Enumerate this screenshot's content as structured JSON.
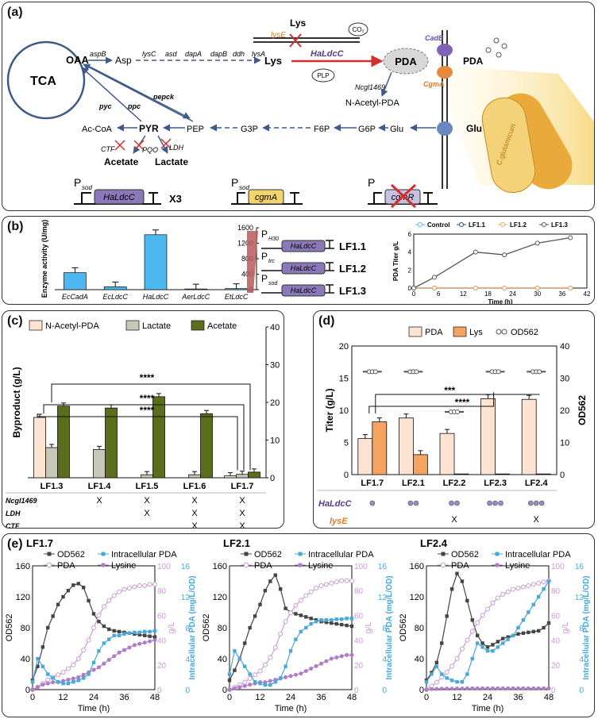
{
  "panel_a": {
    "label": "(a)",
    "tca": "TCA",
    "oaa": "OAA",
    "aspB": "aspB",
    "asp": "Asp",
    "lys_genes": [
      "lysC",
      "asd",
      "dapA",
      "dapB",
      "ddh",
      "lysA"
    ],
    "lys": "Lys",
    "lys_top": "Lys",
    "lysE": "lysE",
    "co2": "CO₂",
    "haldcc": "HaLdcC",
    "plp": "PLP",
    "pda": "PDA",
    "pda_out": "PDA",
    "cadB": "CadB",
    "cgmA": "CgmA",
    "ncgl": "Ncgl1469",
    "nacetyl": "N-Acetyl-PDA",
    "pyc": "pyc",
    "ppc": "ppc",
    "pepck": "pepck",
    "acoa": "Ac-CoA",
    "pyr": "PYR",
    "pep": "PEP",
    "g3p": "G3P",
    "f6p": "F6P",
    "g6p": "G6P",
    "glu": "Glu",
    "glu_out": "Glu",
    "ctf": "CTF",
    "pqo": "PQO",
    "ldh": "LDH",
    "acetate": "Acetate",
    "lactate": "Lactate",
    "cassette1_p": "P",
    "cassette1_sub": "sod",
    "cassette1_gene": "HaLdcC",
    "cassette1_copies": "X3",
    "cassette2_p": "P",
    "cassette2_sub": "sod",
    "cassette2_gene": "cgmA",
    "cassette3_p": "P",
    "cassette3_gene": "cgmR",
    "cell_text": "C.glutamicum"
  },
  "panel_b": {
    "label": "(b)",
    "colors": {
      "bar": "#4db8f0",
      "control": "#4db8f0",
      "lf11": "#1f4e9c",
      "lf12": "#f4a460",
      "lf13": "#555555"
    },
    "constructs": [
      {
        "p": "P",
        "sub": "H30",
        "gene": "HaLdcC",
        "name": "LF1.1"
      },
      {
        "p": "P",
        "sub": "trc",
        "gene": "HaLdcC",
        "name": "LF1.2"
      },
      {
        "p": "P",
        "sub": "sod",
        "gene": "HaLdcC",
        "name": "LF1.3"
      }
    ]
  },
  "panel_c": {
    "label": "(c)",
    "rows": [
      {
        "gene": "Ncgl1469",
        "marks": [
          "",
          "X",
          "X",
          "X",
          "X"
        ]
      },
      {
        "gene": "LDH",
        "marks": [
          "",
          "",
          "X",
          "X",
          "X"
        ]
      },
      {
        "gene": "CTF",
        "marks": [
          "",
          "",
          "",
          "X",
          "X"
        ]
      },
      {
        "gene": "PQO",
        "marks": [
          "",
          "",
          "",
          "",
          "X"
        ]
      }
    ],
    "sig": "****",
    "colors": {
      "nacetyl": "#fde3d2",
      "lactate": "#c8c8b8",
      "acetate": "#5a6e1c"
    }
  },
  "panel_d": {
    "label": "(d)",
    "sig1": "***",
    "sig2": "****",
    "row1_label": "HaLdcC",
    "row1_dots": [
      1,
      2,
      2,
      3,
      3
    ],
    "row2_label": "lysE",
    "row2_marks": [
      "",
      "",
      "X",
      "",
      "X"
    ],
    "colors": {
      "pda": "#fde3d2",
      "lys": "#f4a460",
      "od": "#888888"
    }
  },
  "panel_e": {
    "label": "(e)",
    "colors": {
      "od": "#444444",
      "pda": "#c89cd0",
      "lys": "#b07cc8",
      "intra": "#4aa8d8"
    }
  },
  "chart_data": [
    {
      "type": "bar",
      "categories": [
        "EcCadA",
        "EcLdcC",
        "HaLdcC",
        "AerLdcC",
        "EtLdcC"
      ],
      "values": [
        440,
        75,
        1420,
        18,
        28
      ],
      "xlabel": "",
      "ylabel": "Enzyme activity (U/mg)",
      "ylim": [
        0,
        1600
      ],
      "yticks": [
        "0",
        "400",
        "800",
        "1200",
        "1600"
      ]
    },
    {
      "type": "line",
      "x": [
        0,
        5,
        15,
        22,
        30,
        38
      ],
      "series": [
        {
          "name": "Control",
          "values": [
            0,
            0,
            0,
            0,
            0,
            0
          ]
        },
        {
          "name": "LF1.1",
          "values": [
            0,
            0,
            0,
            0,
            0,
            0
          ]
        },
        {
          "name": "LF1.2",
          "values": [
            0,
            0,
            0,
            0,
            0,
            0
          ]
        },
        {
          "name": "LF1.3",
          "values": [
            0,
            1.2,
            4.0,
            3.7,
            5.0,
            5.6
          ]
        }
      ],
      "xlabel": "Time (h)",
      "ylabel": "PDA Titer g/L",
      "xlim": [
        0,
        42
      ],
      "ylim": [
        0,
        6
      ],
      "xticks": [
        "0",
        "6",
        "12",
        "18",
        "24",
        "30",
        "36",
        "42"
      ],
      "yticks": [
        "0",
        "2",
        "4",
        "6"
      ]
    },
    {
      "type": "bar",
      "categories": [
        "LF1.3",
        "LF1.4",
        "LF1.5",
        "LF1.6",
        "LF1.7"
      ],
      "series": [
        {
          "name": "N-Acetyl-PDA",
          "values": [
            16,
            0,
            0,
            0,
            0.5
          ]
        },
        {
          "name": "Lactate",
          "values": [
            8,
            7.5,
            0.8,
            0.8,
            0.9
          ]
        },
        {
          "name": "Acetate",
          "values": [
            19,
            18.5,
            21.5,
            17,
            1.5
          ]
        }
      ],
      "xlabel": "",
      "ylabel": "Byproduct (g/L)",
      "ylim": [
        0,
        40
      ],
      "yticks": [
        "0",
        "10",
        "20",
        "30",
        "40"
      ]
    },
    {
      "type": "bar",
      "categories": [
        "LF1.7",
        "LF2.1",
        "LF2.2",
        "LF2.3",
        "LF2.4"
      ],
      "series": [
        {
          "name": "PDA",
          "values": [
            5.6,
            8.8,
            6.4,
            11.8,
            11.7
          ]
        },
        {
          "name": "Lys",
          "values": [
            8.2,
            3.1,
            0.1,
            0.1,
            0.1
          ]
        },
        {
          "name": "OD562",
          "values": [
            32,
            32,
            19.5,
            32,
            32
          ]
        }
      ],
      "ylabel": "Titer (g/L)",
      "y2label": "OD562",
      "ylim": [
        0,
        20
      ],
      "y2lim": [
        0,
        40
      ],
      "yticks": [
        "0",
        "5",
        "10",
        "15",
        "20"
      ],
      "y2ticks": [
        "0",
        "10",
        "20",
        "30",
        "40"
      ]
    },
    {
      "type": "line",
      "title": "LF1.7",
      "x": [
        0,
        2,
        4,
        6,
        8,
        10,
        12,
        14,
        16,
        18,
        20,
        22,
        24,
        26,
        28,
        30,
        32,
        34,
        36,
        38,
        40,
        42,
        44,
        46,
        48
      ],
      "series": [
        {
          "name": "OD562",
          "values": [
            12,
            30,
            55,
            80,
            95,
            110,
            120,
            128,
            135,
            137,
            132,
            115,
            98,
            88,
            82,
            78,
            76,
            75,
            74,
            73,
            72,
            71,
            70,
            69,
            68
          ]
        },
        {
          "name": "PDA",
          "values": [
            0,
            2,
            5,
            8,
            10,
            12,
            14,
            17,
            20,
            25,
            32,
            40,
            50,
            60,
            67,
            72,
            76,
            79,
            81,
            82,
            83,
            84,
            84,
            85,
            85
          ]
        },
        {
          "name": "Lysine",
          "values": [
            0,
            2,
            4,
            5,
            6,
            6,
            7,
            8,
            9,
            10,
            12,
            14,
            16,
            18,
            21,
            24,
            27,
            30,
            32,
            34,
            36,
            37,
            38,
            39,
            40
          ]
        },
        {
          "name": "Intracellular PDA",
          "values": [
            1,
            4,
            3,
            2,
            1.5,
            1,
            0.8,
            0.8,
            1,
            1.2,
            1.5,
            2,
            3.5,
            5,
            6,
            6.5,
            7,
            7,
            7.2,
            7.3,
            7.4,
            7.4,
            7.5,
            7.5,
            7.6
          ]
        }
      ],
      "xlabel": "Time (h)",
      "ylabel": "OD562",
      "y2label": "g/L",
      "y3label": "Intracellular PDA (mg/L/OD)",
      "xlim": [
        0,
        48
      ],
      "ylim": [
        0,
        160
      ],
      "y2lim": [
        0,
        100
      ],
      "y3lim": [
        0,
        16
      ],
      "xticks": [
        "0",
        "12",
        "24",
        "36",
        "48"
      ],
      "yticks": [
        "0",
        "40",
        "80",
        "120",
        "160"
      ],
      "y2ticks": [
        "0",
        "20",
        "40",
        "60",
        "80",
        "100"
      ],
      "y3ticks": [
        "0",
        "4",
        "8",
        "12",
        "16"
      ]
    },
    {
      "type": "line",
      "title": "LF2.1",
      "x": [
        0,
        2,
        4,
        6,
        8,
        10,
        12,
        14,
        16,
        18,
        20,
        22,
        24,
        26,
        28,
        30,
        32,
        34,
        36,
        38,
        40,
        42,
        44,
        46,
        48
      ],
      "series": [
        {
          "name": "OD562",
          "values": [
            12,
            25,
            40,
            60,
            80,
            95,
            110,
            128,
            140,
            148,
            130,
            105,
            100,
            98,
            96,
            94,
            92,
            90,
            88,
            87,
            86,
            85,
            84,
            83,
            82
          ]
        },
        {
          "name": "PDA",
          "values": [
            0,
            2,
            4,
            6,
            9,
            12,
            15,
            20,
            26,
            34,
            45,
            55,
            62,
            68,
            72,
            76,
            79,
            82,
            84,
            85,
            86,
            87,
            88,
            88,
            88
          ]
        },
        {
          "name": "Lysine",
          "values": [
            0,
            1,
            2,
            3,
            4,
            5,
            6,
            6,
            7,
            8,
            9,
            10,
            11,
            12,
            13,
            15,
            17,
            19,
            21,
            23,
            25,
            26,
            27,
            28,
            28
          ]
        },
        {
          "name": "Intracellular PDA",
          "values": [
            2,
            5,
            4,
            3,
            2,
            1,
            0.8,
            0.6,
            0.6,
            1,
            1.5,
            3,
            5,
            6.5,
            7.5,
            8,
            8.5,
            8.8,
            9,
            9,
            9,
            9.1,
            9.1,
            9.2,
            9.2
          ]
        }
      ],
      "xlabel": "Time (h)",
      "ylabel": "OD562",
      "y2label": "g/L",
      "y3label": "Intracellular PDA (mg/L/OD)",
      "xlim": [
        0,
        48
      ],
      "ylim": [
        0,
        160
      ],
      "y2lim": [
        0,
        100
      ],
      "y3lim": [
        0,
        16
      ],
      "xticks": [
        "0",
        "12",
        "24",
        "36",
        "48"
      ],
      "yticks": [
        "0",
        "40",
        "80",
        "120",
        "160"
      ],
      "y2ticks": [
        "0",
        "20",
        "40",
        "60",
        "80",
        "100"
      ],
      "y3ticks": [
        "0",
        "4",
        "8",
        "12",
        "16"
      ]
    },
    {
      "type": "line",
      "title": "LF2.4",
      "x": [
        0,
        2,
        4,
        6,
        8,
        10,
        12,
        14,
        16,
        18,
        20,
        22,
        24,
        26,
        28,
        30,
        32,
        34,
        36,
        38,
        40,
        42,
        44,
        46,
        48
      ],
      "series": [
        {
          "name": "OD562",
          "values": [
            12,
            22,
            35,
            60,
            95,
            130,
            150,
            140,
            115,
            90,
            70,
            60,
            55,
            58,
            62,
            66,
            68,
            70,
            72,
            73,
            74,
            75,
            76,
            80,
            86
          ]
        },
        {
          "name": "PDA",
          "values": [
            0,
            3,
            6,
            10,
            14,
            19,
            25,
            33,
            40,
            47,
            54,
            60,
            65,
            70,
            74,
            77,
            79,
            81,
            82,
            83,
            84,
            85,
            86,
            87,
            88
          ]
        },
        {
          "name": "Lysine",
          "values": [
            0,
            0.5,
            0.6,
            0.7,
            0.8,
            0.8,
            0.9,
            0.9,
            1,
            1,
            1,
            1,
            1,
            1,
            1,
            1,
            1,
            1,
            1,
            1,
            1,
            1,
            1,
            1,
            1
          ]
        },
        {
          "name": "Intracellular PDA",
          "values": [
            1,
            2,
            3,
            2,
            1.5,
            1.2,
            1,
            1,
            2,
            4,
            6,
            5.5,
            5,
            5,
            5.5,
            6,
            6.5,
            7,
            8,
            9,
            10,
            11,
            12,
            13,
            14
          ]
        }
      ],
      "xlabel": "Time (h)",
      "ylabel": "OD562",
      "y2label": "g/L",
      "y3label": "Intracellular PDA (mg/L/OD)",
      "xlim": [
        0,
        48
      ],
      "ylim": [
        0,
        160
      ],
      "y2lim": [
        0,
        100
      ],
      "y3lim": [
        0,
        16
      ],
      "xticks": [
        "0",
        "12",
        "24",
        "36",
        "48"
      ],
      "yticks": [
        "0",
        "40",
        "80",
        "120",
        "160"
      ],
      "y2ticks": [
        "0",
        "20",
        "40",
        "60",
        "80",
        "100"
      ],
      "y3ticks": [
        "0",
        "4",
        "8",
        "12",
        "16"
      ]
    }
  ]
}
